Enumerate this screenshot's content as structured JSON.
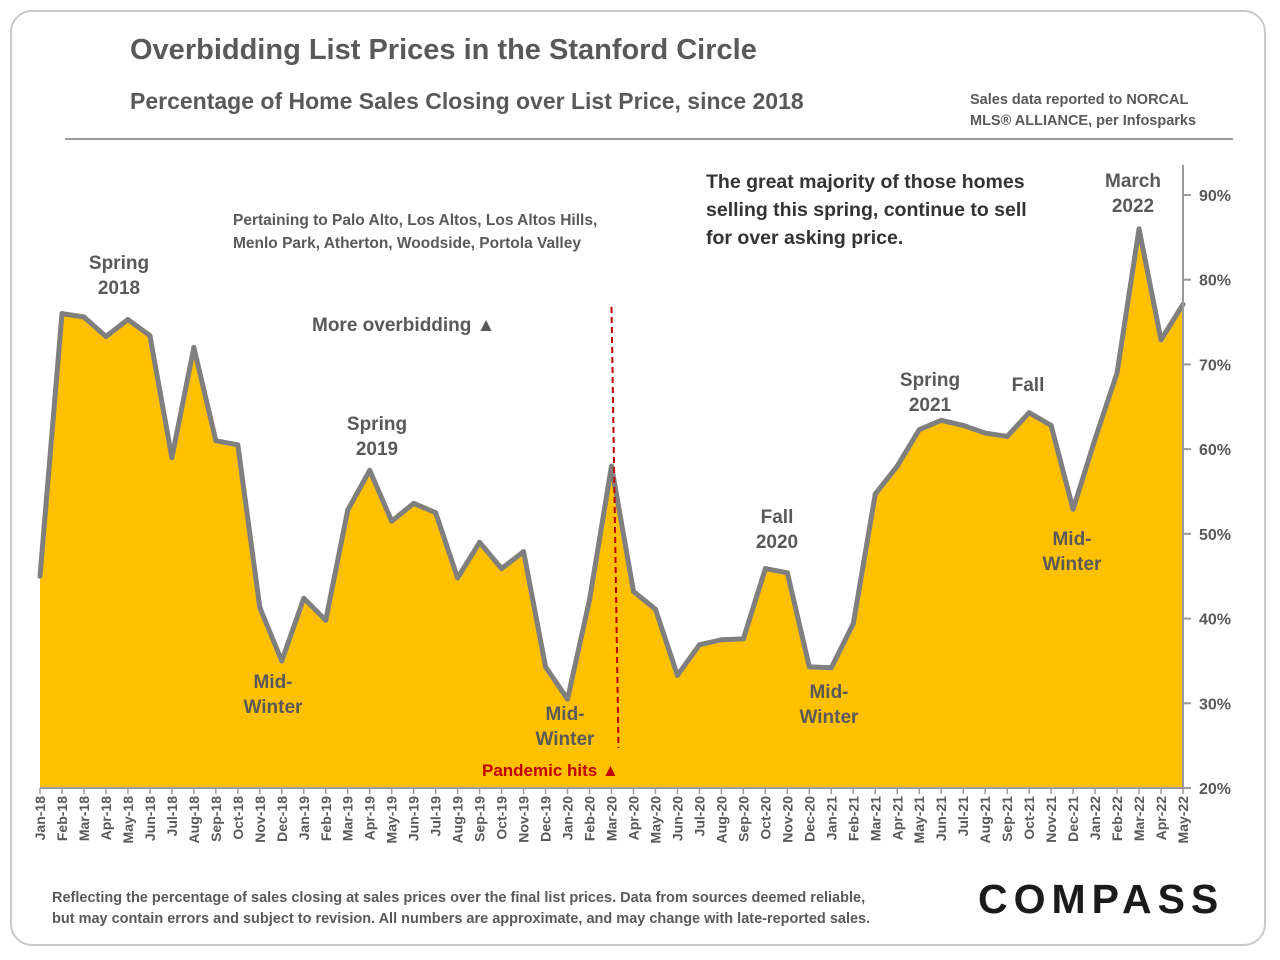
{
  "header": {
    "title": "Overbidding List Prices in the Stanford Circle",
    "subtitle": "Percentage of Home Sales Closing over List Price, since 2018",
    "source_line1": "Sales data reported to NORCAL",
    "source_line2": "MLS® ALLIANCE, per Infosparks"
  },
  "footer": {
    "note_line1": "Reflecting the percentage of sales closing at sales prices over the final list prices. Data from sources deemed reliable,",
    "note_line2": "but may contain errors and subject to revision. All numbers are approximate, and may change with late-reported sales.",
    "logo": "COMPASS"
  },
  "colors": {
    "fill": "#ffc000",
    "line": "#7f7f7f",
    "pandemic": "#c00000",
    "text": "#595959"
  },
  "chart_data": {
    "type": "area",
    "x": [
      "Jan-18",
      "Feb-18",
      "Mar-18",
      "Apr-18",
      "May-18",
      "Jun-18",
      "Jul-18",
      "Aug-18",
      "Sep-18",
      "Oct-18",
      "Nov-18",
      "Dec-18",
      "Jan-19",
      "Feb-19",
      "Mar-19",
      "Apr-19",
      "May-19",
      "Jun-19",
      "Jul-19",
      "Aug-19",
      "Sep-19",
      "Oct-19",
      "Nov-19",
      "Dec-19",
      "Jan-20",
      "Feb-20",
      "Mar-20",
      "Apr-20",
      "May-20",
      "Jun-20",
      "Jul-20",
      "Aug-20",
      "Sep-20",
      "Oct-20",
      "Nov-20",
      "Dec-20",
      "Jan-21",
      "Feb-21",
      "Mar-21",
      "Apr-21",
      "May-21",
      "Jun-21",
      "Jul-21",
      "Aug-21",
      "Sep-21",
      "Oct-21",
      "Nov-21",
      "Dec-21",
      "Jan-22",
      "Feb-22",
      "Mar-22",
      "Apr-22",
      "May-22"
    ],
    "series": [
      {
        "values": [
          45,
          76,
          75.6,
          73.3,
          75.3,
          73.4,
          59,
          72,
          61,
          60.5,
          41.3,
          35,
          42.4,
          39.8,
          52.8,
          57.5,
          51.5,
          53.6,
          52.5,
          44.8,
          49,
          45.9,
          47.9,
          34.3,
          30.5,
          42.2,
          58,
          43.2,
          41.1,
          33.3,
          36.9,
          37.5,
          37.6,
          45.9,
          45.4,
          34.3,
          34.2,
          39.4,
          54.7,
          58,
          62.3,
          63.4,
          62.8,
          61.9,
          61.5,
          64.3,
          62.8,
          52.9,
          61.2,
          69,
          86,
          72.9,
          77.1
        ]
      }
    ],
    "ylim": [
      20,
      90
    ],
    "yticks": [
      "20%",
      "30%",
      "40%",
      "50%",
      "60%",
      "70%",
      "80%",
      "90%"
    ],
    "ytick_values": [
      20,
      30,
      40,
      50,
      60,
      70,
      80,
      90
    ],
    "pandemic_x": "Mar-20",
    "annotations": {
      "spring2018": [
        "Spring",
        "2018"
      ],
      "spring2019": [
        "Spring",
        "2019"
      ],
      "fall2020": [
        "Fall",
        "2020"
      ],
      "spring2021": [
        "Spring",
        "2021"
      ],
      "fall": [
        "Fall"
      ],
      "march2022": [
        "March",
        "2022"
      ],
      "midwinter_1": [
        "Mid-",
        "Winter"
      ],
      "midwinter_2": [
        "Mid-",
        "Winter"
      ],
      "midwinter_3": [
        "Mid-",
        "Winter"
      ],
      "midwinter_4": [
        "Mid-",
        "Winter"
      ],
      "towns": [
        "Pertaining to Palo Alto, Los Altos, Los Altos Hills,",
        "Menlo Park, Atherton, Woodside, Portola Valley"
      ],
      "more_overbidding": "More overbidding ▲",
      "callout": [
        "The great majority of those homes",
        "selling this spring, continue to sell",
        "for over asking price."
      ],
      "pandemic": "Pandemic hits ▲"
    }
  }
}
